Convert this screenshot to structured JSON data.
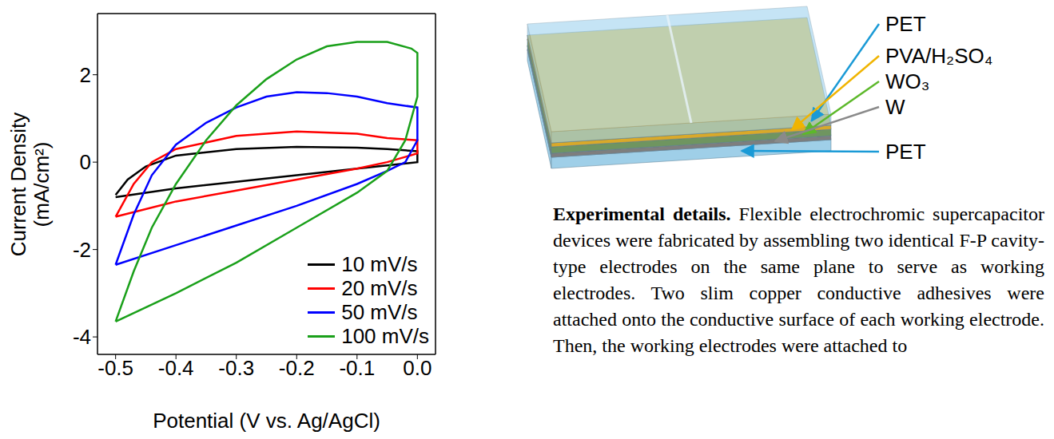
{
  "chart_data": {
    "type": "line",
    "x_label": "Potential (V vs. Ag/AgCl)",
    "y_label": "Current Density (mA/cm²)",
    "xlim": [
      -0.53,
      0.03
    ],
    "xticks": [
      -0.5,
      -0.4,
      -0.3,
      -0.2,
      -0.1,
      {
        "value": 0,
        "label": "0.0"
      }
    ],
    "ylim": [
      -4.4,
      3.4
    ],
    "yticks": [
      -4,
      -2,
      0,
      2
    ],
    "grid": false,
    "legend": "lower right",
    "series": [
      {
        "name": "10 mV/s",
        "color": "#000000",
        "x": [
          -0.5,
          -0.48,
          -0.45,
          -0.4,
          -0.3,
          -0.2,
          -0.1,
          -0.05,
          0,
          0,
          -0.1,
          -0.2,
          -0.3,
          -0.4,
          -0.5
        ],
        "values": [
          -0.75,
          -0.4,
          -0.1,
          0.15,
          0.3,
          0.35,
          0.33,
          0.3,
          0.25,
          0.0,
          -0.15,
          -0.3,
          -0.45,
          -0.6,
          -0.8
        ]
      },
      {
        "name": "20 mV/s",
        "color": "#ff0000",
        "x": [
          -0.5,
          -0.47,
          -0.44,
          -0.4,
          -0.3,
          -0.2,
          -0.1,
          -0.05,
          0,
          0,
          -0.05,
          -0.1,
          -0.2,
          -0.3,
          -0.4,
          -0.5
        ],
        "values": [
          -1.25,
          -0.5,
          0.0,
          0.3,
          0.6,
          0.7,
          0.65,
          0.55,
          0.5,
          0.2,
          0.0,
          -0.15,
          -0.4,
          -0.65,
          -0.9,
          -1.25
        ]
      },
      {
        "name": "50 mV/s",
        "color": "#0000ff",
        "x": [
          -0.5,
          -0.47,
          -0.44,
          -0.4,
          -0.35,
          -0.3,
          -0.25,
          -0.2,
          -0.15,
          -0.1,
          -0.05,
          0,
          0,
          -0.02,
          -0.05,
          -0.1,
          -0.2,
          -0.3,
          -0.4,
          -0.5
        ],
        "values": [
          -2.35,
          -1.2,
          -0.3,
          0.4,
          0.9,
          1.25,
          1.5,
          1.6,
          1.58,
          1.5,
          1.35,
          1.25,
          0.5,
          0.0,
          -0.2,
          -0.5,
          -1.0,
          -1.45,
          -1.9,
          -2.35
        ]
      },
      {
        "name": "100 mV/s",
        "color": "#1aa01a",
        "x": [
          -0.5,
          -0.47,
          -0.44,
          -0.4,
          -0.35,
          -0.3,
          -0.25,
          -0.2,
          -0.15,
          -0.1,
          -0.05,
          -0.01,
          0,
          0,
          -0.02,
          -0.05,
          -0.1,
          -0.2,
          -0.3,
          -0.4,
          -0.5
        ],
        "values": [
          -3.65,
          -2.5,
          -1.5,
          -0.5,
          0.5,
          1.3,
          1.9,
          2.35,
          2.65,
          2.75,
          2.75,
          2.6,
          2.5,
          1.5,
          0.5,
          -0.2,
          -0.7,
          -1.5,
          -2.3,
          -3.0,
          -3.65
        ]
      }
    ]
  },
  "diagram": {
    "layers": [
      "PET",
      "PVA/H₂SO₄",
      "WO₃",
      "W",
      "PET"
    ]
  },
  "caption": {
    "heading": "Experimental details.",
    "body": "Flexible electrochromic supercapacitor devices were fabricated by assembling two identical F-P cavity-type electrodes on the same plane to serve as working electrodes. Two slim copper conductive adhesives were attached onto the conductive surface of each working electrode. Then, the working electrodes were attached to"
  }
}
